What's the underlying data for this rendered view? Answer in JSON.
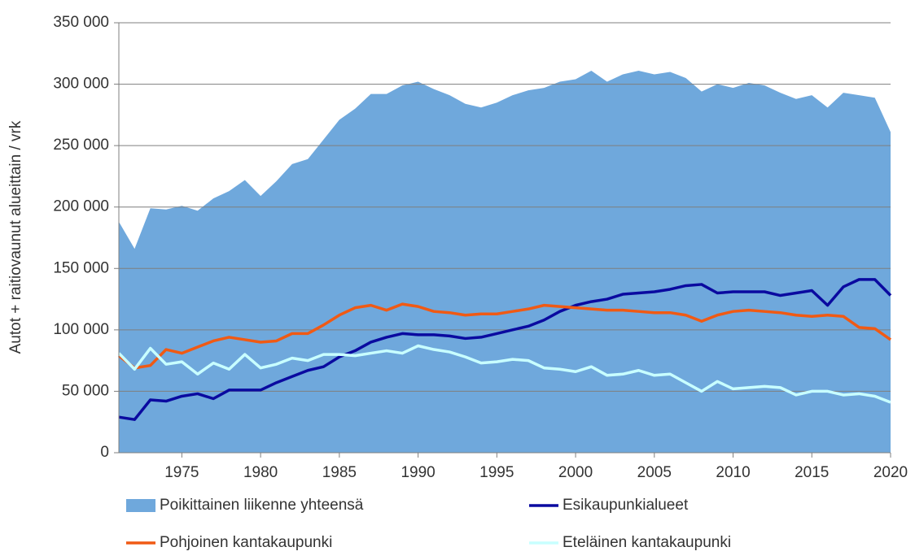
{
  "chart_data": {
    "type": "line",
    "y_label": "Autot + raitiovaunut alueittain / vrk",
    "x": [
      1971,
      1972,
      1973,
      1974,
      1975,
      1976,
      1977,
      1978,
      1979,
      1980,
      1981,
      1982,
      1983,
      1984,
      1985,
      1986,
      1987,
      1988,
      1989,
      1990,
      1991,
      1992,
      1993,
      1994,
      1995,
      1996,
      1997,
      1998,
      1999,
      2000,
      2001,
      2002,
      2003,
      2004,
      2005,
      2006,
      2007,
      2008,
      2009,
      2010,
      2011,
      2012,
      2013,
      2014,
      2015,
      2016,
      2017,
      2018,
      2019,
      2020
    ],
    "series": [
      {
        "name": "Poikittainen liikenne yhteensä",
        "style": "area",
        "color": "#6fa8dc",
        "values": [
          188000,
          166000,
          199000,
          198000,
          201000,
          197000,
          207000,
          213000,
          222000,
          209000,
          221000,
          235000,
          239000,
          255000,
          271000,
          280000,
          292000,
          292000,
          299000,
          302000,
          296000,
          291000,
          284000,
          281000,
          285000,
          291000,
          295000,
          297000,
          302000,
          304000,
          311000,
          302000,
          308000,
          311000,
          308000,
          310000,
          305000,
          294000,
          300000,
          297000,
          301000,
          299000,
          293000,
          288000,
          291000,
          281000,
          293000,
          291000,
          289000,
          261000
        ]
      },
      {
        "name": "Esikaupunkialueet",
        "style": "line",
        "color": "#0a0aa0",
        "values": [
          29000,
          27000,
          43000,
          42000,
          46000,
          48000,
          44000,
          51000,
          51000,
          51000,
          57000,
          62000,
          67000,
          70000,
          78000,
          83000,
          90000,
          94000,
          97000,
          96000,
          96000,
          95000,
          93000,
          94000,
          97000,
          100000,
          103000,
          108000,
          115000,
          120000,
          123000,
          125000,
          129000,
          130000,
          131000,
          133000,
          136000,
          137000,
          130000,
          131000,
          131000,
          131000,
          128000,
          130000,
          132000,
          120000,
          135000,
          141000,
          141000,
          128000
        ]
      },
      {
        "name": "Pohjoinen kantakaupunki",
        "style": "line",
        "color": "#f05a14",
        "values": [
          79000,
          69000,
          71000,
          84000,
          81000,
          86000,
          91000,
          94000,
          92000,
          90000,
          91000,
          97000,
          97000,
          104000,
          112000,
          118000,
          120000,
          116000,
          121000,
          119000,
          115000,
          114000,
          112000,
          113000,
          113000,
          115000,
          117000,
          120000,
          119000,
          118000,
          117000,
          116000,
          116000,
          115000,
          114000,
          114000,
          112000,
          107000,
          112000,
          115000,
          116000,
          115000,
          114000,
          112000,
          111000,
          112000,
          111000,
          102000,
          101000,
          92000
        ]
      },
      {
        "name": "Eteläinen kantakaupunki",
        "style": "line",
        "color": "#c8ffff",
        "values": [
          81000,
          68000,
          85000,
          72000,
          74000,
          64000,
          73000,
          68000,
          80000,
          69000,
          72000,
          77000,
          75000,
          80000,
          80000,
          79000,
          81000,
          83000,
          81000,
          87000,
          84000,
          82000,
          78000,
          73000,
          74000,
          76000,
          75000,
          69000,
          68000,
          66000,
          70000,
          63000,
          64000,
          67000,
          63000,
          64000,
          57000,
          50000,
          58000,
          52000,
          53000,
          54000,
          53000,
          47000,
          50000,
          50000,
          47000,
          48000,
          46000,
          41000
        ]
      }
    ],
    "xlim": [
      1971,
      2020
    ],
    "xticks": [
      1975,
      1980,
      1985,
      1990,
      1995,
      2000,
      2005,
      2010,
      2015,
      2020
    ],
    "ylim": [
      0,
      350000
    ],
    "yticks": [
      0,
      {
        "value": 50000,
        "label": "50 000"
      },
      {
        "value": 100000,
        "label": "100 000"
      },
      {
        "value": 150000,
        "label": "150 000"
      },
      {
        "value": 200000,
        "label": "200 000"
      },
      {
        "value": 250000,
        "label": "250 000"
      },
      {
        "value": 300000,
        "label": "300 000"
      },
      {
        "value": 350000,
        "label": "350 000"
      }
    ],
    "grid": true,
    "legend": "bottom"
  }
}
